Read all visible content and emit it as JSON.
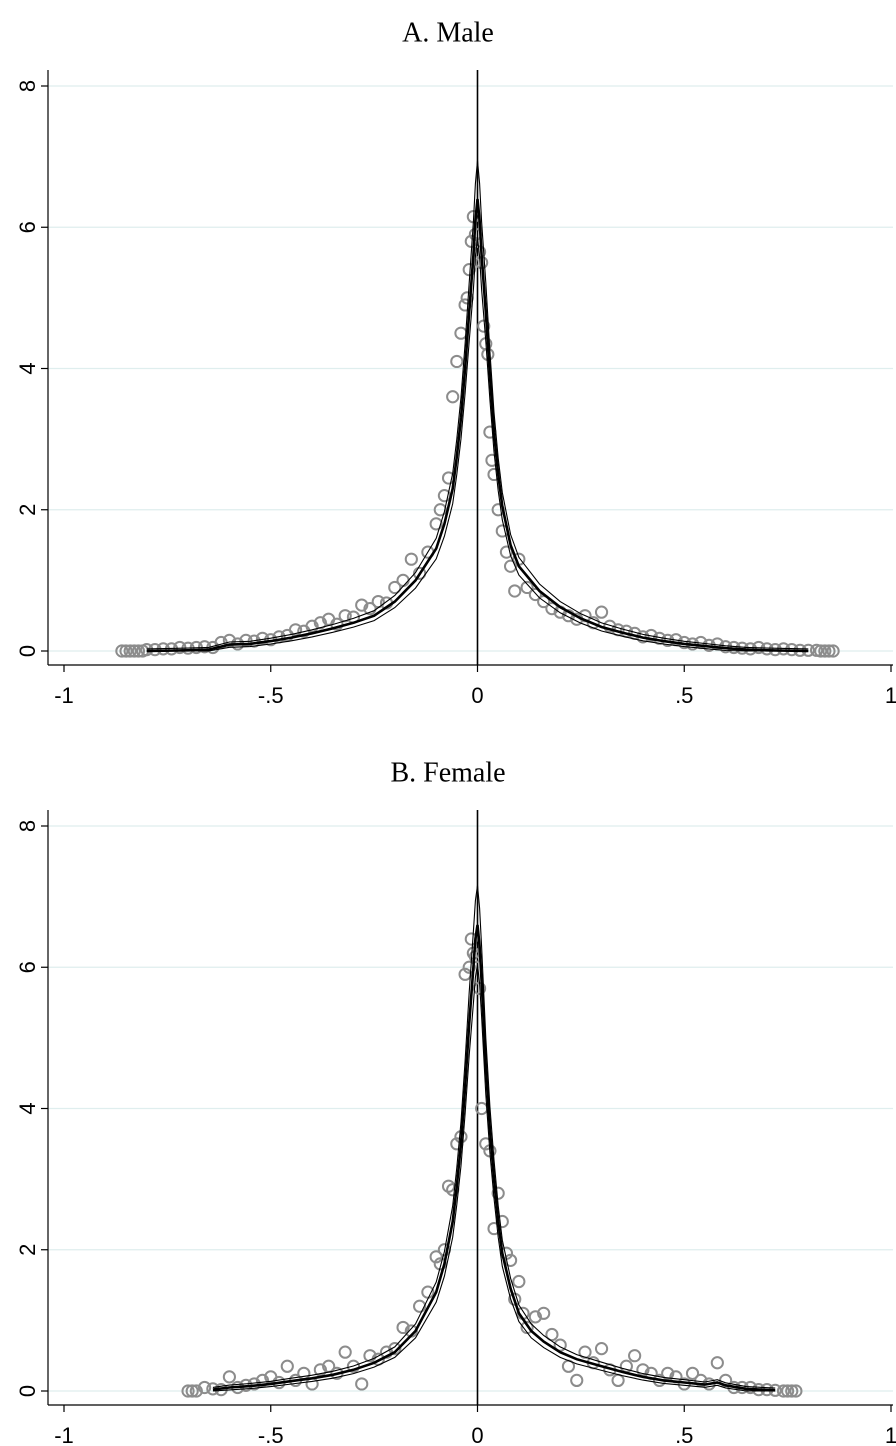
{
  "chart_data": [
    {
      "type": "scatter",
      "title": "A. Male",
      "xlim": [
        -1,
        1
      ],
      "ylim": [
        0,
        8
      ],
      "x_ticks": [
        "-1",
        "-.5",
        "0",
        ".5",
        "1"
      ],
      "y_ticks": [
        "0",
        "2",
        "4",
        "6",
        "8"
      ],
      "grid": true,
      "reference_line_x": 0,
      "colors": {
        "points": "#8c8c8c",
        "fit": "#000000",
        "band": "#000000",
        "grid": "#dfeeee"
      },
      "series": [
        {
          "type": "scatter",
          "x": [
            -0.86,
            -0.85,
            -0.84,
            -0.83,
            -0.82,
            -0.81,
            -0.8,
            -0.78,
            -0.76,
            -0.74,
            -0.72,
            -0.7,
            -0.68,
            -0.66,
            -0.64,
            -0.62,
            -0.6,
            -0.58,
            -0.56,
            -0.54,
            -0.52,
            -0.5,
            -0.48,
            -0.46,
            -0.44,
            -0.42,
            -0.4,
            -0.38,
            -0.36,
            -0.34,
            -0.32,
            -0.3,
            -0.28,
            -0.26,
            -0.24,
            -0.22,
            -0.2,
            -0.18,
            -0.16,
            -0.14,
            -0.12,
            -0.1,
            -0.09,
            -0.08,
            -0.07,
            -0.06,
            -0.05,
            -0.04,
            -0.03,
            -0.025,
            -0.02,
            -0.015,
            -0.01,
            -0.005,
            0.005,
            0.01,
            0.015,
            0.02,
            0.025,
            0.03,
            0.035,
            0.04,
            0.05,
            0.06,
            0.07,
            0.08,
            0.09,
            0.1,
            0.12,
            0.14,
            0.16,
            0.18,
            0.2,
            0.22,
            0.24,
            0.26,
            0.28,
            0.3,
            0.32,
            0.34,
            0.36,
            0.38,
            0.4,
            0.42,
            0.44,
            0.46,
            0.48,
            0.5,
            0.52,
            0.54,
            0.56,
            0.58,
            0.6,
            0.62,
            0.64,
            0.66,
            0.68,
            0.7,
            0.72,
            0.74,
            0.76,
            0.78,
            0.8,
            0.82,
            0.83,
            0.84,
            0.85,
            0.86
          ],
          "y": [
            0,
            0,
            0,
            0,
            0,
            0,
            0.02,
            0.02,
            0.03,
            0.03,
            0.05,
            0.04,
            0.05,
            0.06,
            0.05,
            0.12,
            0.15,
            0.1,
            0.15,
            0.14,
            0.18,
            0.16,
            0.2,
            0.22,
            0.3,
            0.28,
            0.35,
            0.4,
            0.45,
            0.38,
            0.5,
            0.48,
            0.65,
            0.6,
            0.7,
            0.68,
            0.9,
            1.0,
            1.3,
            1.1,
            1.4,
            1.8,
            2.0,
            2.2,
            2.45,
            3.6,
            4.1,
            4.5,
            4.9,
            5.0,
            5.4,
            5.8,
            6.15,
            5.9,
            5.65,
            5.5,
            4.6,
            4.35,
            4.2,
            3.1,
            2.7,
            2.5,
            2.0,
            1.7,
            1.4,
            1.2,
            0.85,
            1.3,
            0.9,
            0.8,
            0.7,
            0.6,
            0.55,
            0.5,
            0.45,
            0.5,
            0.4,
            0.55,
            0.35,
            0.3,
            0.28,
            0.25,
            0.2,
            0.22,
            0.18,
            0.15,
            0.16,
            0.12,
            0.1,
            0.12,
            0.08,
            0.1,
            0.06,
            0.05,
            0.04,
            0.03,
            0.05,
            0.03,
            0.02,
            0.03,
            0.02,
            0.01,
            0.01,
            0.01,
            0,
            0,
            0,
            0
          ]
        },
        {
          "type": "line",
          "name": "fit",
          "x": [
            -0.8,
            -0.7,
            -0.65,
            -0.6,
            -0.55,
            -0.5,
            -0.45,
            -0.4,
            -0.35,
            -0.3,
            -0.25,
            -0.2,
            -0.15,
            -0.1,
            -0.08,
            -0.06,
            -0.05,
            -0.04,
            -0.03,
            -0.02,
            -0.01,
            -0.005,
            0,
            0.005,
            0.01,
            0.02,
            0.03,
            0.04,
            0.05,
            0.06,
            0.08,
            0.1,
            0.15,
            0.2,
            0.25,
            0.3,
            0.35,
            0.4,
            0.45,
            0.5,
            0.55,
            0.6,
            0.65,
            0.7,
            0.8
          ],
          "y": [
            0,
            0.01,
            0.02,
            0.09,
            0.1,
            0.14,
            0.19,
            0.25,
            0.32,
            0.4,
            0.5,
            0.7,
            1.0,
            1.45,
            1.8,
            2.3,
            2.75,
            3.3,
            4.0,
            4.8,
            5.6,
            6.1,
            6.4,
            6.1,
            5.6,
            4.8,
            3.9,
            3.1,
            2.5,
            2.05,
            1.5,
            1.2,
            0.85,
            0.62,
            0.46,
            0.34,
            0.26,
            0.19,
            0.14,
            0.1,
            0.07,
            0.04,
            0.02,
            0.01,
            0
          ]
        }
      ]
    },
    {
      "type": "scatter",
      "title": "B. Female",
      "xlim": [
        -1,
        1
      ],
      "ylim": [
        0,
        8
      ],
      "x_ticks": [
        "-1",
        "-.5",
        "0",
        ".5",
        "1"
      ],
      "y_ticks": [
        "0",
        "2",
        "4",
        "6",
        "8"
      ],
      "grid": true,
      "reference_line_x": 0,
      "colors": {
        "points": "#8c8c8c",
        "fit": "#000000",
        "band": "#000000",
        "grid": "#dfeeee"
      },
      "series": [
        {
          "type": "scatter",
          "x": [
            -0.7,
            -0.69,
            -0.68,
            -0.66,
            -0.64,
            -0.62,
            -0.6,
            -0.58,
            -0.56,
            -0.54,
            -0.52,
            -0.5,
            -0.48,
            -0.46,
            -0.44,
            -0.42,
            -0.4,
            -0.38,
            -0.36,
            -0.34,
            -0.32,
            -0.3,
            -0.28,
            -0.26,
            -0.24,
            -0.22,
            -0.2,
            -0.18,
            -0.16,
            -0.14,
            -0.12,
            -0.1,
            -0.09,
            -0.08,
            -0.07,
            -0.06,
            -0.05,
            -0.04,
            -0.03,
            -0.02,
            -0.015,
            -0.01,
            -0.005,
            0.005,
            0.01,
            0.02,
            0.03,
            0.04,
            0.05,
            0.06,
            0.07,
            0.08,
            0.09,
            0.1,
            0.11,
            0.12,
            0.14,
            0.16,
            0.18,
            0.2,
            0.22,
            0.24,
            0.26,
            0.28,
            0.3,
            0.32,
            0.34,
            0.36,
            0.38,
            0.4,
            0.42,
            0.44,
            0.46,
            0.48,
            0.5,
            0.52,
            0.54,
            0.56,
            0.58,
            0.6,
            0.62,
            0.64,
            0.66,
            0.68,
            0.7,
            0.72,
            0.74,
            0.75,
            0.76,
            0.77
          ],
          "y": [
            0,
            0,
            0,
            0.05,
            0.03,
            0.02,
            0.2,
            0.05,
            0.08,
            0.1,
            0.15,
            0.2,
            0.12,
            0.35,
            0.15,
            0.25,
            0.1,
            0.3,
            0.35,
            0.25,
            0.55,
            0.35,
            0.1,
            0.5,
            0.45,
            0.55,
            0.6,
            0.9,
            0.85,
            1.2,
            1.4,
            1.9,
            1.8,
            2.0,
            2.9,
            2.85,
            3.5,
            3.6,
            5.9,
            6.0,
            6.4,
            6.2,
            6.15,
            5.7,
            4.0,
            3.5,
            3.4,
            2.3,
            2.8,
            2.4,
            1.95,
            1.85,
            1.3,
            1.55,
            1.1,
            0.9,
            1.05,
            1.1,
            0.8,
            0.65,
            0.35,
            0.15,
            0.55,
            0.4,
            0.6,
            0.3,
            0.15,
            0.35,
            0.5,
            0.3,
            0.25,
            0.15,
            0.25,
            0.2,
            0.1,
            0.25,
            0.15,
            0.1,
            0.4,
            0.15,
            0.05,
            0.05,
            0.05,
            0.02,
            0.02,
            0.01,
            0,
            0,
            0,
            0
          ]
        },
        {
          "type": "line",
          "name": "fit",
          "x": [
            -0.64,
            -0.6,
            -0.55,
            -0.5,
            -0.45,
            -0.4,
            -0.35,
            -0.3,
            -0.25,
            -0.2,
            -0.15,
            -0.1,
            -0.08,
            -0.06,
            -0.05,
            -0.04,
            -0.03,
            -0.02,
            -0.01,
            -0.005,
            0,
            0.005,
            0.01,
            0.02,
            0.03,
            0.04,
            0.05,
            0.06,
            0.08,
            0.1,
            0.13,
            0.16,
            0.2,
            0.24,
            0.3,
            0.35,
            0.4,
            0.45,
            0.5,
            0.55,
            0.58,
            0.6,
            0.65,
            0.72
          ],
          "y": [
            0.02,
            0.05,
            0.07,
            0.1,
            0.14,
            0.18,
            0.23,
            0.3,
            0.4,
            0.55,
            0.85,
            1.4,
            1.8,
            2.4,
            2.9,
            3.5,
            4.3,
            5.2,
            6.0,
            6.4,
            6.6,
            6.3,
            5.8,
            4.6,
            3.7,
            3.0,
            2.4,
            1.95,
            1.45,
            1.1,
            0.85,
            0.7,
            0.55,
            0.45,
            0.35,
            0.27,
            0.2,
            0.15,
            0.12,
            0.09,
            0.12,
            0.08,
            0.03,
            0.01
          ]
        }
      ]
    }
  ]
}
